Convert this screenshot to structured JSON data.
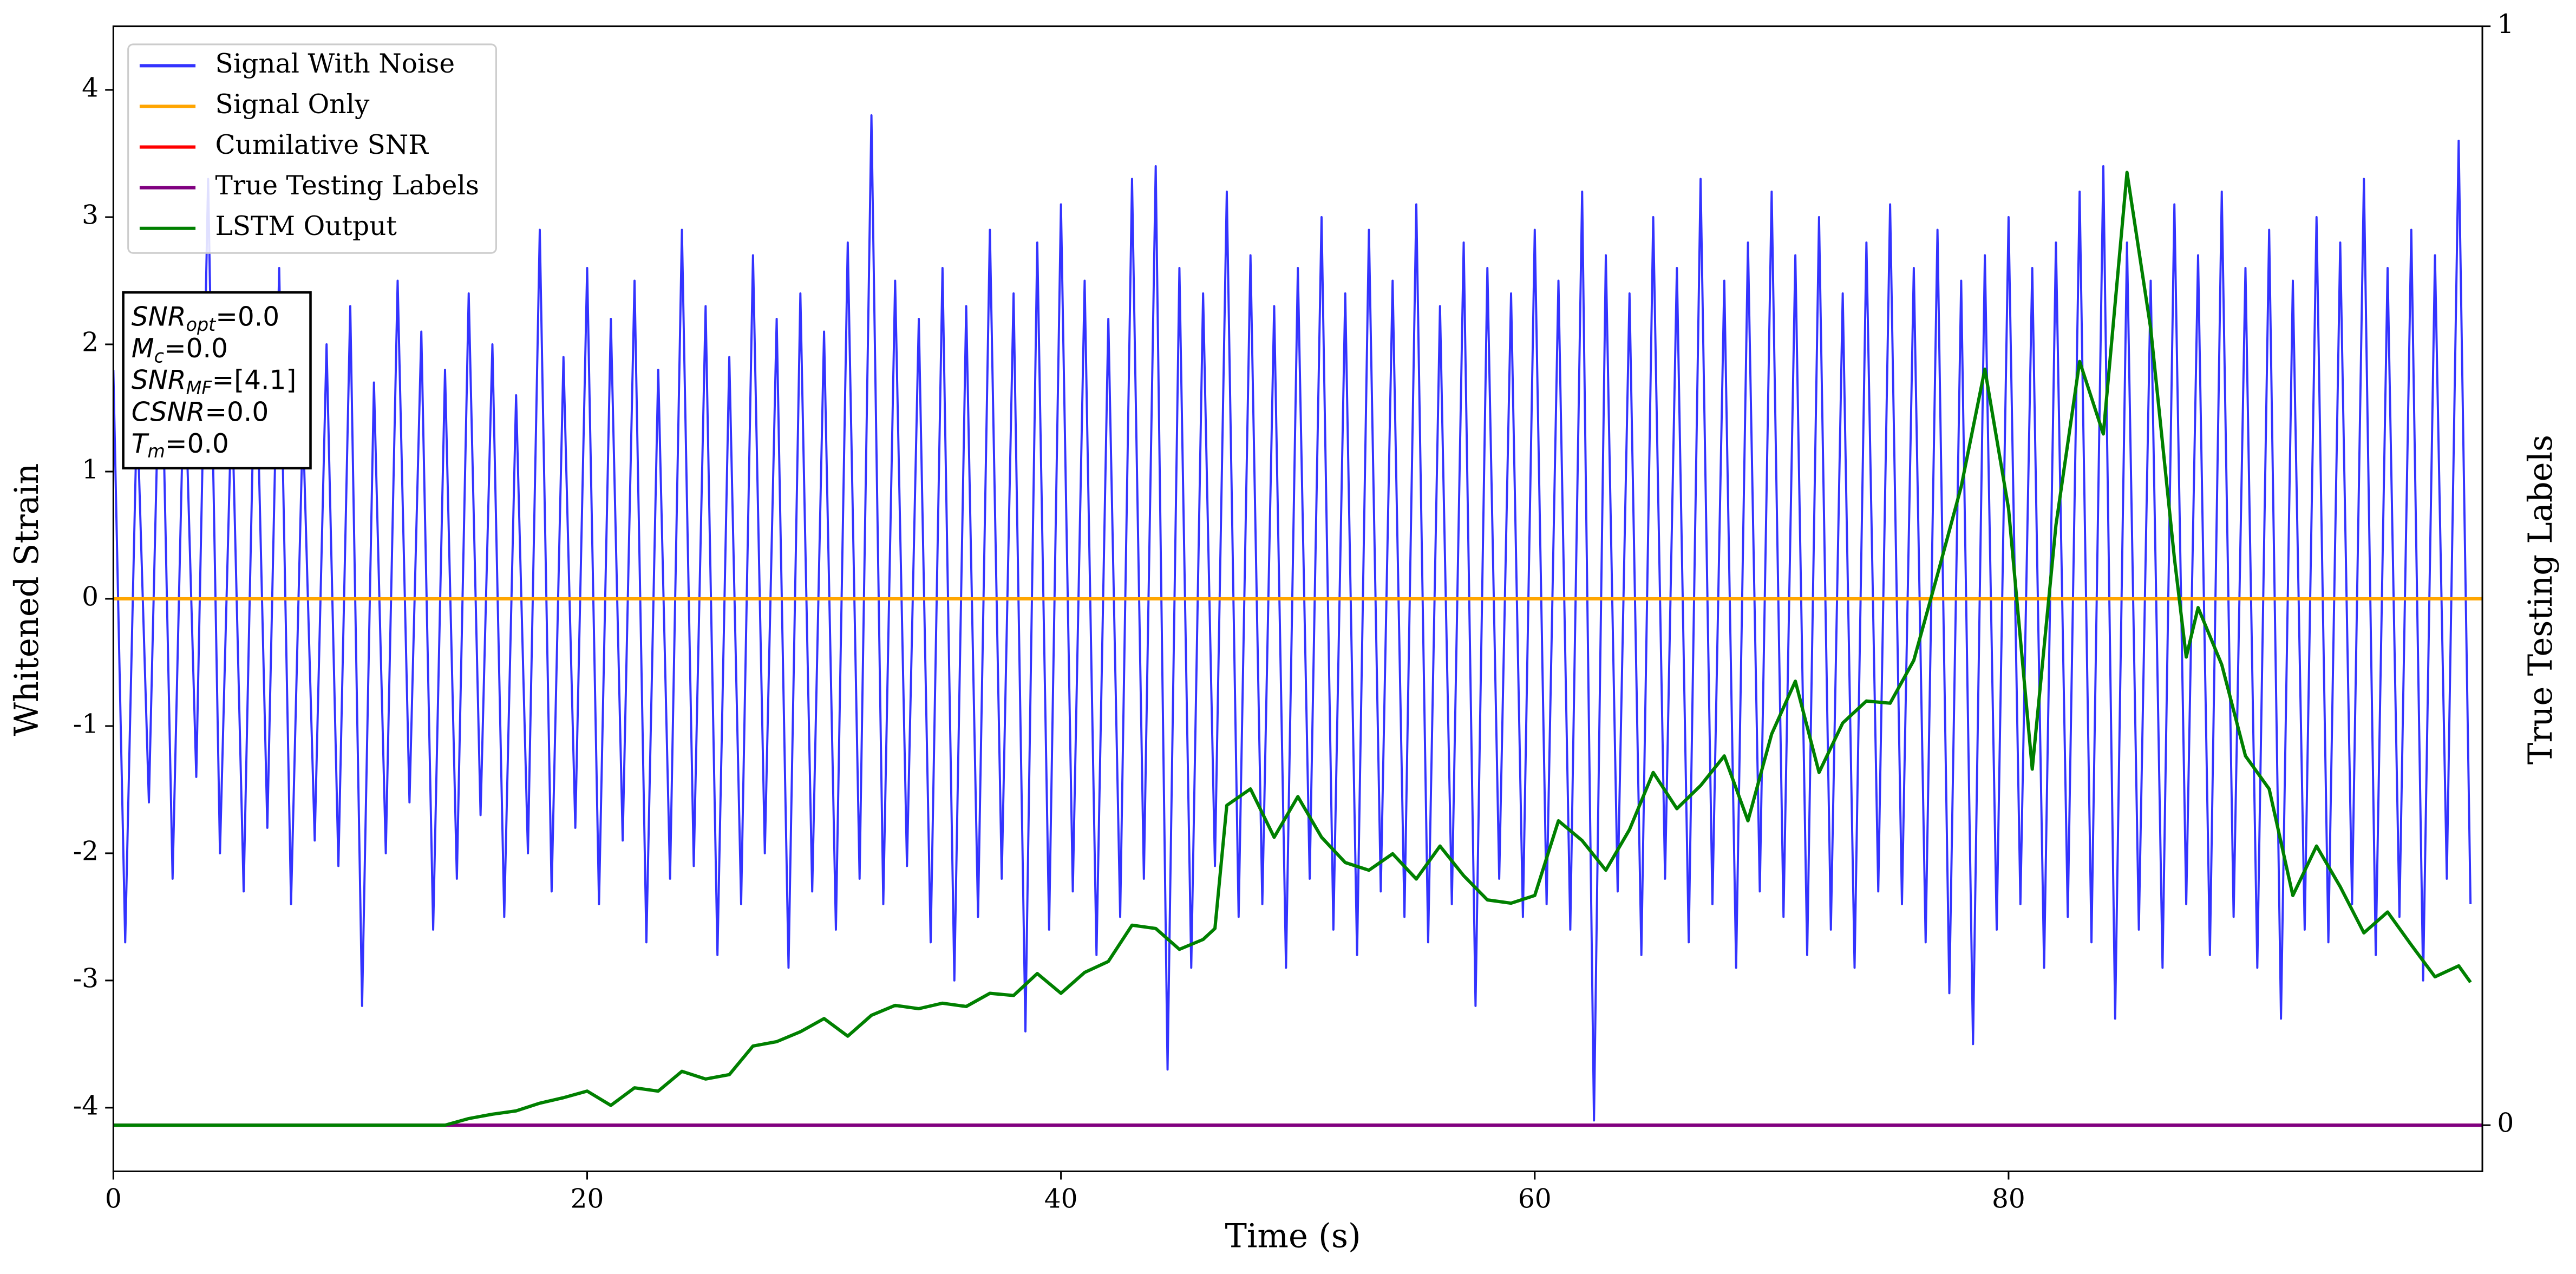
{
  "chart_data": {
    "type": "line",
    "xlabel": "Time (s)",
    "ylabel": "Whitened Strain",
    "y2label": "True Testing Labels",
    "xlim": [
      0,
      100
    ],
    "xticks": [
      0,
      20,
      40,
      60,
      80
    ],
    "ylim": [
      -4.5,
      4.5
    ],
    "yticks": [
      -4,
      -3,
      -2,
      -1,
      0,
      1,
      2,
      3,
      4
    ],
    "y2lim": [
      -0.042,
      1
    ],
    "y2ticks": [
      0,
      1
    ],
    "legend": "upper left",
    "series": [
      {
        "name": "Signal With Noise",
        "color": "#3333ff",
        "axis": "y",
        "x": [
          0,
          0.5,
          1,
          1.5,
          2,
          2.5,
          3,
          3.5,
          4,
          4.5,
          5,
          5.5,
          6,
          6.5,
          7,
          7.5,
          8,
          8.5,
          9,
          9.5,
          10,
          10.5,
          11,
          11.5,
          12,
          12.5,
          13,
          13.5,
          14,
          14.5,
          15,
          15.5,
          16,
          16.5,
          17,
          17.5,
          18,
          18.5,
          19,
          19.5,
          20,
          20.5,
          21,
          21.5,
          22,
          22.5,
          23,
          23.5,
          24,
          24.5,
          25,
          25.5,
          26,
          26.5,
          27,
          27.5,
          28,
          28.5,
          29,
          29.5,
          30,
          30.5,
          31,
          31.5,
          32,
          32.5,
          33,
          33.5,
          34,
          34.5,
          35,
          35.5,
          36,
          36.5,
          37,
          37.5,
          38,
          38.5,
          39,
          39.5,
          40,
          40.5,
          41,
          41.5,
          42,
          42.5,
          43,
          43.5,
          44,
          44.5,
          45,
          45.5,
          46,
          46.5,
          47,
          47.5,
          48,
          48.5,
          49,
          49.5,
          50,
          50.5,
          51,
          51.5,
          52,
          52.5,
          53,
          53.5,
          54,
          54.5,
          55,
          55.5,
          56,
          56.5,
          57,
          57.5,
          58,
          58.5,
          59,
          59.5,
          60,
          60.5,
          61,
          61.5,
          62,
          62.5,
          63,
          63.5,
          64,
          64.5,
          65,
          65.5,
          66,
          66.5,
          67,
          67.5,
          68,
          68.5,
          69,
          69.5,
          70,
          70.5,
          71,
          71.5,
          72,
          72.5,
          73,
          73.5,
          74,
          74.5,
          75,
          75.5,
          76,
          76.5,
          77,
          77.5,
          78,
          78.5,
          79,
          79.5,
          80,
          80.5,
          81,
          81.5,
          82,
          82.5,
          83,
          83.5,
          84,
          84.5,
          85,
          85.5,
          86,
          86.5,
          87,
          87.5,
          88,
          88.5,
          89,
          89.5,
          90,
          90.5,
          91,
          91.5,
          92,
          92.5,
          93,
          93.5,
          94,
          94.5,
          95,
          95.5,
          96,
          96.5,
          97,
          97.5,
          98,
          98.5,
          99,
          99.5
        ],
        "values": [
          1.8,
          -2.7,
          1.5,
          -1.6,
          2.4,
          -2.2,
          1.9,
          -1.4,
          3.3,
          -2.0,
          1.6,
          -2.3,
          2.2,
          -1.8,
          2.6,
          -2.4,
          1.4,
          -1.9,
          2.0,
          -2.1,
          2.3,
          -3.2,
          1.7,
          -2.0,
          2.5,
          -1.6,
          2.1,
          -2.6,
          1.8,
          -2.2,
          2.4,
          -1.7,
          2.0,
          -2.5,
          1.6,
          -2.0,
          2.9,
          -2.3,
          1.9,
          -1.8,
          2.6,
          -2.4,
          2.2,
          -1.9,
          2.5,
          -2.7,
          1.8,
          -2.2,
          2.9,
          -2.1,
          2.3,
          -2.8,
          1.9,
          -2.4,
          2.7,
          -2.0,
          2.2,
          -2.9,
          2.4,
          -2.3,
          2.1,
          -2.6,
          2.8,
          -2.2,
          3.8,
          -2.4,
          2.5,
          -2.1,
          2.2,
          -2.7,
          2.6,
          -3.0,
          2.3,
          -2.5,
          2.9,
          -2.2,
          2.4,
          -3.4,
          2.8,
          -2.6,
          3.1,
          -2.3,
          2.5,
          -2.8,
          2.2,
          -2.5,
          3.3,
          -2.2,
          3.4,
          -3.7,
          2.6,
          -2.9,
          2.4,
          -2.1,
          3.2,
          -2.5,
          2.7,
          -2.4,
          2.3,
          -2.9,
          2.6,
          -2.2,
          3.0,
          -2.6,
          2.4,
          -2.8,
          2.9,
          -2.3,
          2.5,
          -2.5,
          3.1,
          -2.7,
          2.3,
          -2.4,
          2.8,
          -3.2,
          2.6,
          -2.2,
          2.4,
          -2.5,
          2.9,
          -2.4,
          2.5,
          -2.6,
          3.2,
          -4.1,
          2.7,
          -2.3,
          2.4,
          -2.8,
          3.0,
          -2.2,
          2.6,
          -2.7,
          3.3,
          -2.4,
          2.5,
          -2.9,
          2.8,
          -2.3,
          3.2,
          -2.5,
          2.7,
          -2.8,
          3.0,
          -2.6,
          2.4,
          -2.9,
          2.8,
          -2.3,
          3.1,
          -2.4,
          2.6,
          -2.7,
          2.9,
          -3.1,
          2.5,
          -3.5,
          2.7,
          -2.6,
          3.0,
          -2.4,
          2.6,
          -2.9,
          2.8,
          -2.5,
          3.2,
          -2.7,
          3.4,
          -3.3,
          2.8,
          -2.6,
          2.5,
          -2.9,
          3.1,
          -2.4,
          2.7,
          -2.8,
          3.2,
          -2.5,
          2.6,
          -2.9,
          2.9,
          -3.3,
          2.5,
          -2.6,
          3.0,
          -2.7,
          2.8,
          -2.4,
          3.3,
          -2.8,
          2.6,
          -2.5,
          2.9,
          -3.0,
          2.7,
          -2.2,
          3.6,
          -2.4
        ]
      },
      {
        "name": "Signal Only",
        "color": "#ffa500",
        "axis": "y",
        "x": [
          0,
          100
        ],
        "values": [
          0,
          0
        ]
      },
      {
        "name": "Cumilative SNR",
        "color": "#ff0000",
        "axis": "y2",
        "x": [
          0,
          100
        ],
        "values": [
          0,
          0
        ]
      },
      {
        "name": "True Testing Labels",
        "color": "#800080",
        "axis": "y2",
        "x": [
          0,
          100
        ],
        "values": [
          0,
          0
        ]
      },
      {
        "name": "LSTM Output",
        "color": "#008000",
        "axis": "y2",
        "x": [
          0,
          13,
          14,
          15,
          16,
          17,
          18,
          19,
          20,
          21,
          22,
          23,
          24,
          25,
          26,
          27,
          28,
          29,
          30,
          31,
          32,
          33,
          34,
          35,
          36,
          37,
          38,
          39,
          40,
          41,
          42,
          43,
          44,
          45,
          46,
          46.5,
          47,
          48,
          49,
          50,
          51,
          52,
          53,
          54,
          55,
          56,
          57,
          58,
          59,
          60,
          61,
          62,
          63,
          64,
          65,
          66,
          67,
          68,
          69,
          70,
          71,
          72,
          73,
          74,
          75,
          76,
          77,
          78,
          79,
          80,
          81,
          82,
          83,
          84,
          85,
          86,
          87,
          87.5,
          88,
          89,
          90,
          91,
          92,
          93,
          94,
          95,
          96,
          97,
          98,
          99,
          99.5
        ],
        "values": [
          0,
          0,
          0,
          0.006,
          0.01,
          0.013,
          0.02,
          0.025,
          0.031,
          0.018,
          0.034,
          0.031,
          0.049,
          0.042,
          0.046,
          0.072,
          0.076,
          0.085,
          0.097,
          0.081,
          0.1,
          0.109,
          0.106,
          0.111,
          0.108,
          0.12,
          0.118,
          0.138,
          0.12,
          0.139,
          0.149,
          0.182,
          0.179,
          0.16,
          0.169,
          0.179,
          0.291,
          0.306,
          0.262,
          0.299,
          0.262,
          0.239,
          0.232,
          0.247,
          0.224,
          0.254,
          0.227,
          0.205,
          0.202,
          0.209,
          0.277,
          0.259,
          0.232,
          0.269,
          0.321,
          0.288,
          0.309,
          0.336,
          0.277,
          0.356,
          0.404,
          0.321,
          0.366,
          0.386,
          0.384,
          0.423,
          0.501,
          0.581,
          0.688,
          0.561,
          0.324,
          0.546,
          0.695,
          0.629,
          0.867,
          0.725,
          0.516,
          0.426,
          0.471,
          0.419,
          0.336,
          0.306,
          0.209,
          0.254,
          0.217,
          0.175,
          0.194,
          0.164,
          0.135,
          0.145,
          0.13
        ]
      }
    ],
    "annotations": [
      {
        "text": "SNR",
        "sub": "opt",
        "value": "=0.0"
      },
      {
        "text": "M",
        "sub": "c",
        "value": "=0.0"
      },
      {
        "text": "SNR",
        "sub": "MF",
        "value": "=[4.1]"
      },
      {
        "text": "CSNR",
        "value": "=0.0"
      },
      {
        "text": "T",
        "sub": "m",
        "value": "=0.0"
      }
    ]
  }
}
